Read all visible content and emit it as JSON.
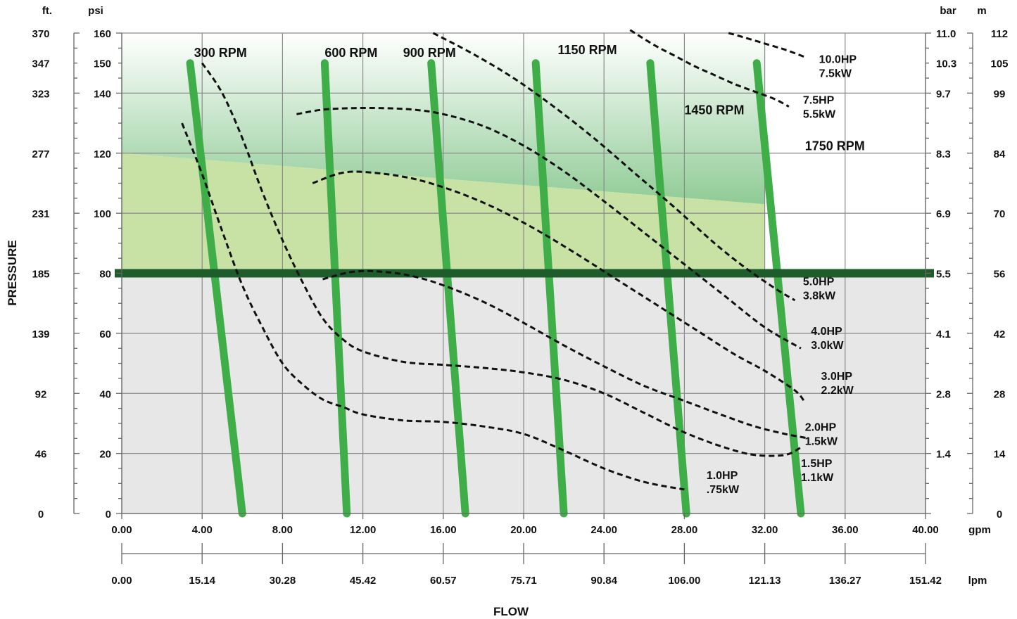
{
  "colors": {
    "rpm_line": "#3fae49",
    "threshold_line": "#1f5c2c",
    "hp_curve": "#111111",
    "zone_low": "#e7e7e7",
    "zone_mid": "#c7e2a4",
    "zone_high": "#8fcb95"
  },
  "chart_data": {
    "type": "line",
    "xlabel": "FLOW",
    "ylabel": "PRESSURE",
    "xlim": [
      0,
      40
    ],
    "ylim": [
      0,
      160
    ],
    "grid": true,
    "axes": {
      "gpm": {
        "unit": "gpm",
        "ticks": [
          0,
          4,
          8,
          12,
          16,
          20,
          24,
          28,
          32,
          36,
          40
        ],
        "labels": [
          "0.00",
          "4.00",
          "8.00",
          "12.00",
          "16.00",
          "20.00",
          "24.00",
          "28.00",
          "32.00",
          "36.00",
          "40.00"
        ]
      },
      "lpm": {
        "unit": "lpm",
        "ticks": [
          0,
          4,
          8,
          12,
          16,
          20,
          24,
          28,
          32,
          36,
          40
        ],
        "labels": [
          "0.00",
          "15.14",
          "30.28",
          "45.42",
          "60.57",
          "75.71",
          "90.84",
          "106.00",
          "121.13",
          "136.27",
          "151.42"
        ]
      },
      "psi": {
        "unit": "psi",
        "ticks": [
          0,
          20,
          40,
          60,
          80,
          100,
          120,
          140,
          150,
          160
        ],
        "labels": [
          "0",
          "20",
          "40",
          "60",
          "80",
          "100",
          "120",
          "140",
          "150",
          "160"
        ]
      },
      "ft": {
        "unit": "ft.",
        "ticks": [
          0,
          20,
          40,
          60,
          80,
          100,
          120,
          140,
          150,
          160
        ],
        "labels": [
          "0",
          "46",
          "92",
          "139",
          "185",
          "231",
          "277",
          "323",
          "347",
          "370"
        ]
      },
      "bar": {
        "unit": "bar",
        "ticks": [
          20,
          40,
          60,
          80,
          100,
          120,
          140,
          150,
          160
        ],
        "labels": [
          "1.4",
          "2.8",
          "4.1",
          "5.5",
          "6.9",
          "8.3",
          "9.7",
          "10.3",
          "11.0"
        ]
      },
      "m": {
        "unit": "m",
        "ticks": [
          0,
          20,
          40,
          60,
          80,
          100,
          120,
          140,
          150,
          160
        ],
        "labels": [
          "0",
          "14",
          "28",
          "42",
          "56",
          "70",
          "84",
          "99",
          "105",
          "112"
        ]
      }
    },
    "zones": {
      "low_top": 80,
      "mid_top": [
        [
          0,
          120
        ],
        [
          32,
          103
        ]
      ],
      "high_top": 160
    },
    "threshold_psi": 80,
    "rpm_series": [
      {
        "name": "300 RPM",
        "x": [
          3.4,
          6.0
        ],
        "y": [
          150,
          0
        ],
        "label_at": [
          3.6,
          152
        ]
      },
      {
        "name": "600 RPM",
        "x": [
          10.1,
          11.2
        ],
        "y": [
          150,
          0
        ],
        "label_at": [
          10.1,
          152
        ]
      },
      {
        "name": "900 RPM",
        "x": [
          15.4,
          17.1
        ],
        "y": [
          150,
          0
        ],
        "label_at": [
          14.0,
          152
        ]
      },
      {
        "name": "1150 RPM",
        "x": [
          20.6,
          22.0
        ],
        "y": [
          150,
          0
        ],
        "label_at": [
          21.7,
          153
        ]
      },
      {
        "name": "1450 RPM",
        "x": [
          26.3,
          28.1
        ],
        "y": [
          150,
          0
        ],
        "label_at": [
          28.0,
          133
        ]
      },
      {
        "name": "1750 RPM",
        "x": [
          31.6,
          33.8
        ],
        "y": [
          150,
          0
        ],
        "label_at": [
          34.0,
          121
        ]
      }
    ],
    "hp_series": [
      {
        "name": "1.0HP .75kW",
        "labels": [
          "1.0HP",
          ".75kW"
        ],
        "label_at": [
          29.1,
          11.5
        ],
        "x": [
          3.0,
          4.0,
          5.0,
          6.0,
          7.0,
          8.0,
          9.0,
          10.0,
          11.0,
          12.0,
          14.0,
          16.0,
          18.0,
          20.0,
          22.0,
          24.0,
          26.0,
          28.0
        ],
        "y": [
          130,
          113,
          94,
          76,
          62,
          50,
          43,
          38,
          35.5,
          33,
          31,
          30.5,
          29,
          26.5,
          21,
          15,
          10.5,
          8
        ]
      },
      {
        "name": "1.5HP 1.1kW",
        "labels": [
          "1.5HP",
          "1.1kW"
        ],
        "label_at": [
          33.8,
          15.5
        ],
        "x": [
          4.0,
          5.0,
          6.0,
          7.0,
          8.0,
          9.0,
          10.0,
          11.0,
          12.0,
          14.0,
          16.0,
          18.0,
          20.0,
          22.0,
          24.0,
          26.0,
          28.0,
          30.0,
          31.5,
          33.0,
          33.8
        ],
        "y": [
          150,
          140,
          125,
          107,
          91,
          77,
          65,
          58,
          54,
          50.5,
          49.5,
          48.5,
          47,
          44.5,
          40,
          33.5,
          27,
          22,
          19.5,
          19.5,
          22
        ]
      },
      {
        "name": "2.0HP 1.5kW",
        "labels": [
          "2.0HP",
          "1.5kW"
        ],
        "label_at": [
          34.0,
          27.5
        ],
        "x": [
          10.0,
          11.5,
          13.0,
          14.5,
          16.0,
          18.0,
          20.0,
          22.0,
          24.0,
          26.0,
          28.0,
          30.0,
          31.5,
          33.0,
          34.2
        ],
        "y": [
          78,
          80.5,
          80.5,
          79,
          76,
          70.5,
          63.5,
          56,
          49,
          42.5,
          37.5,
          32.5,
          29,
          26.5,
          25
        ]
      },
      {
        "name": "3.0HP 2.2kW",
        "labels": [
          "3.0HP",
          "2.2kW"
        ],
        "label_at": [
          34.8,
          44.5
        ],
        "x": [
          9.5,
          11.0,
          12.5,
          14.5,
          16.5,
          18.5,
          20.5,
          22.5,
          24.5,
          26.5,
          28.5,
          30.5,
          32.0,
          33.5,
          34.0
        ],
        "y": [
          110,
          113.5,
          113.5,
          111.5,
          107.5,
          102,
          95,
          87,
          78.5,
          70,
          61.5,
          53,
          47.5,
          41,
          37
        ]
      },
      {
        "name": "4.0HP 3.0kW",
        "labels": [
          "4.0HP",
          "3.0kW"
        ],
        "label_at": [
          34.3,
          59.5
        ],
        "x": [
          8.7,
          10.0,
          11.5,
          13.0,
          14.5,
          16.0,
          18.0,
          20.0,
          22.0,
          24.0,
          26.0,
          28.0,
          30.0,
          32.0,
          33.8
        ],
        "y": [
          133,
          134.5,
          135,
          135,
          134.5,
          133,
          129,
          122.5,
          114,
          104,
          93.5,
          83,
          72.5,
          62,
          55
        ]
      },
      {
        "name": "5.0HP 3.8kW",
        "labels": [
          "5.0HP",
          "3.8kW"
        ],
        "label_at": [
          33.9,
          76
        ],
        "x": [
          15.5,
          17.5,
          19.5,
          21.5,
          23.5,
          25.5,
          27.5,
          29.5,
          31.0,
          32.5,
          33.5
        ],
        "y": [
          160,
          153,
          145,
          135.5,
          125,
          113.5,
          102,
          90,
          82,
          75,
          71
        ]
      },
      {
        "name": "7.5HP 5.5kW",
        "labels": [
          "7.5HP",
          "5.5kW"
        ],
        "label_at": [
          33.9,
          136.5
        ],
        "x": [
          25.3,
          26.5,
          27.5,
          28.5,
          29.5,
          30.5,
          31.5,
          32.5,
          33.2
        ],
        "y": [
          161,
          156,
          152.5,
          149,
          146,
          143,
          140.5,
          138,
          135.5
        ]
      },
      {
        "name": "10.0HP 7.5kW",
        "labels": [
          "10.0HP",
          "7.5kW"
        ],
        "label_at": [
          34.7,
          150
        ],
        "x": [
          30.2,
          31.0,
          32.0,
          33.0,
          34.0
        ],
        "y": [
          160,
          158.5,
          156.5,
          154.5,
          152
        ]
      }
    ]
  }
}
